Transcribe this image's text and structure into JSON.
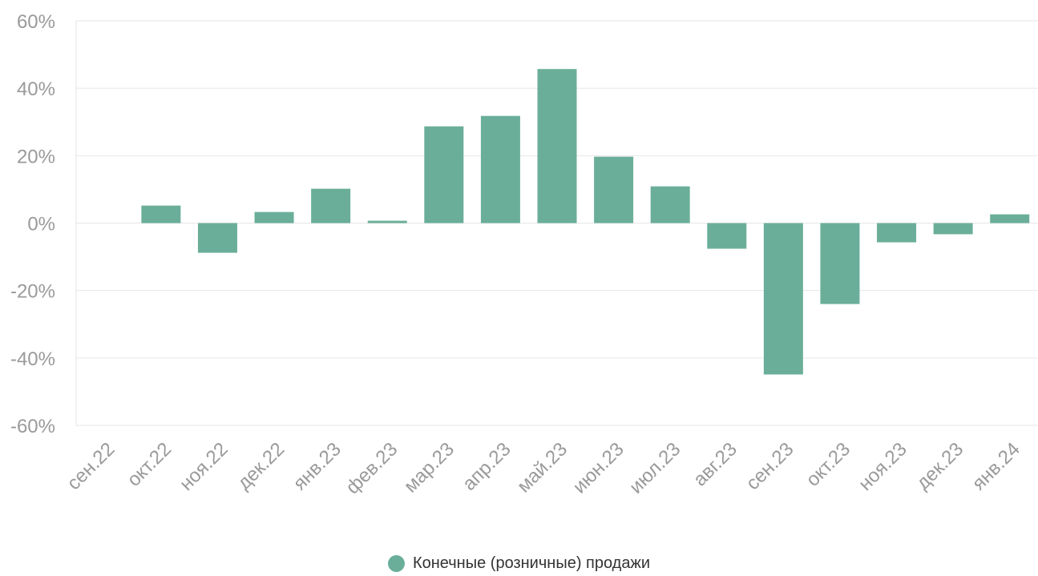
{
  "chart_data": {
    "type": "bar",
    "categories": [
      "сен.22",
      "окт.22",
      "ноя.22",
      "дек.22",
      "янв.23",
      "фев.23",
      "мар.23",
      "апр.23",
      "май.23",
      "июн.23",
      "июл.23",
      "авг.23",
      "сен.23",
      "окт.23",
      "ноя.23",
      "дек.23",
      "янв.24"
    ],
    "series": [
      {
        "name": "Конечные (розничные) продажи",
        "values": [
          0,
          5.2,
          -8.8,
          3.3,
          10.2,
          0.7,
          28.7,
          31.8,
          45.7,
          19.7,
          10.9,
          -7.6,
          -44.9,
          -24.0,
          -5.7,
          -3.3,
          2.6
        ]
      }
    ],
    "y_ticks": [
      "60%",
      "40%",
      "20%",
      "0%",
      "-20%",
      "-40%",
      "-60%"
    ],
    "ylim": [
      -60,
      60
    ],
    "y_unit": "%",
    "grid": true,
    "legend_position": "bottom",
    "colors": {
      "bar": "#6aae99",
      "grid": "#e6e6e6",
      "tick_text": "#9a9a9a"
    }
  },
  "legend": {
    "label": "Конечные (розничные) продажи"
  }
}
